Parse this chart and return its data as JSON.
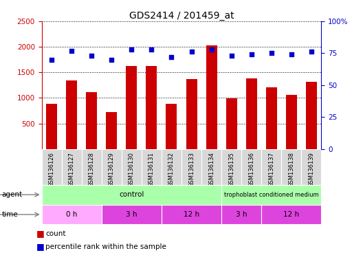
{
  "title": "GDS2414 / 201459_at",
  "samples": [
    "GSM136126",
    "GSM136127",
    "GSM136128",
    "GSM136129",
    "GSM136130",
    "GSM136131",
    "GSM136132",
    "GSM136133",
    "GSM136134",
    "GSM136135",
    "GSM136136",
    "GSM136137",
    "GSM136138",
    "GSM136139"
  ],
  "counts": [
    880,
    1340,
    1110,
    730,
    1630,
    1630,
    880,
    1370,
    2020,
    990,
    1380,
    1210,
    1060,
    1310
  ],
  "percentile_ranks": [
    70,
    77,
    73,
    70,
    78,
    78,
    72,
    76,
    78,
    73,
    74,
    75,
    74,
    76
  ],
  "bar_color": "#cc0000",
  "dot_color": "#0000cc",
  "ylim_left": [
    0,
    2500
  ],
  "ylim_right": [
    0,
    100
  ],
  "yticks_left": [
    500,
    1000,
    1500,
    2000,
    2500
  ],
  "yticks_right": [
    0,
    25,
    50,
    75,
    100
  ],
  "plot_bg_color": "#ffffff",
  "tick_label_color_left": "#cc0000",
  "tick_label_color_right": "#0000cc",
  "title_color": "#000000",
  "title_fontsize": 10,
  "agent_control_color": "#aaffaa",
  "agent_tropho_color": "#aaffaa",
  "time_light_color": "#ffaaff",
  "time_dark_color": "#dd44dd",
  "sample_bg_color": "#d0d0d0",
  "legend_count_color": "#cc0000",
  "legend_dot_color": "#0000cc"
}
